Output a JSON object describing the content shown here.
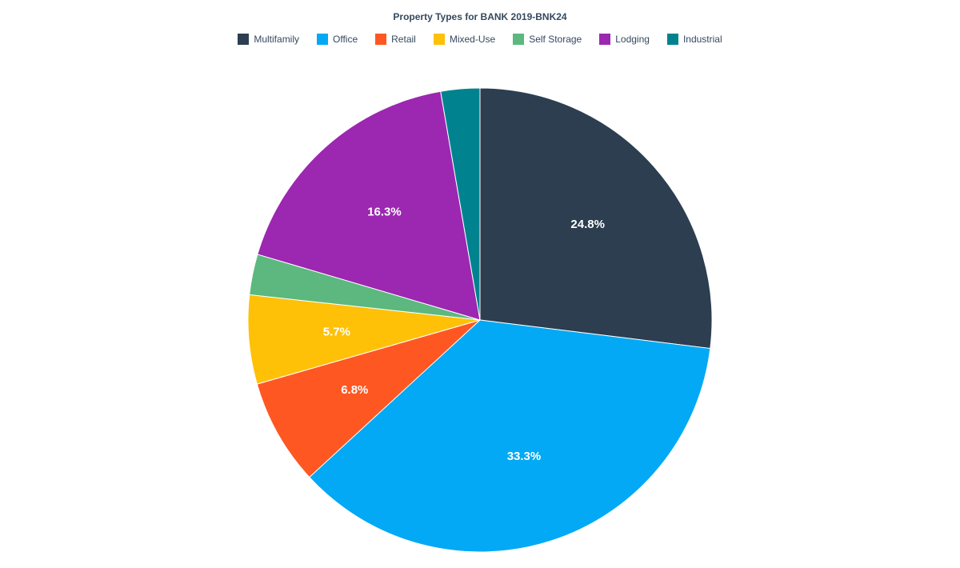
{
  "chart": {
    "type": "pie",
    "title": "Property Types for BANK 2019-BNK24",
    "title_fontsize": 12,
    "title_color": "#34495e",
    "background_color": "#ffffff",
    "radius": 290,
    "start_angle_deg": -90,
    "direction": "clockwise",
    "slice_stroke": "#ffffff",
    "slice_stroke_width": 1,
    "slice_label_color": "#ffffff",
    "slice_label_fontsize": 15,
    "slice_label_fontweight": 700,
    "show_label_min_pct": 4.0,
    "legend": {
      "position": "top",
      "fontsize": 12,
      "text_color": "#34495e",
      "swatch_size": 14
    },
    "slices": [
      {
        "label": "Multifamily",
        "value": 24.8,
        "color": "#2c3e50",
        "display": "24.8%"
      },
      {
        "label": "Office",
        "value": 33.3,
        "color": "#03a9f4",
        "display": "33.3%"
      },
      {
        "label": "Retail",
        "value": 6.8,
        "color": "#ff5722",
        "display": "6.8%"
      },
      {
        "label": "Mixed-Use",
        "value": 5.7,
        "color": "#ffc107",
        "display": "5.7%"
      },
      {
        "label": "Self Storage",
        "value": 2.6,
        "color": "#5cb87e",
        "display": "2.6%"
      },
      {
        "label": "Lodging",
        "value": 16.3,
        "color": "#9c27b0",
        "display": "16.3%"
      },
      {
        "label": "Industrial",
        "value": 2.5,
        "color": "#00838f",
        "display": "2.5%"
      }
    ]
  }
}
